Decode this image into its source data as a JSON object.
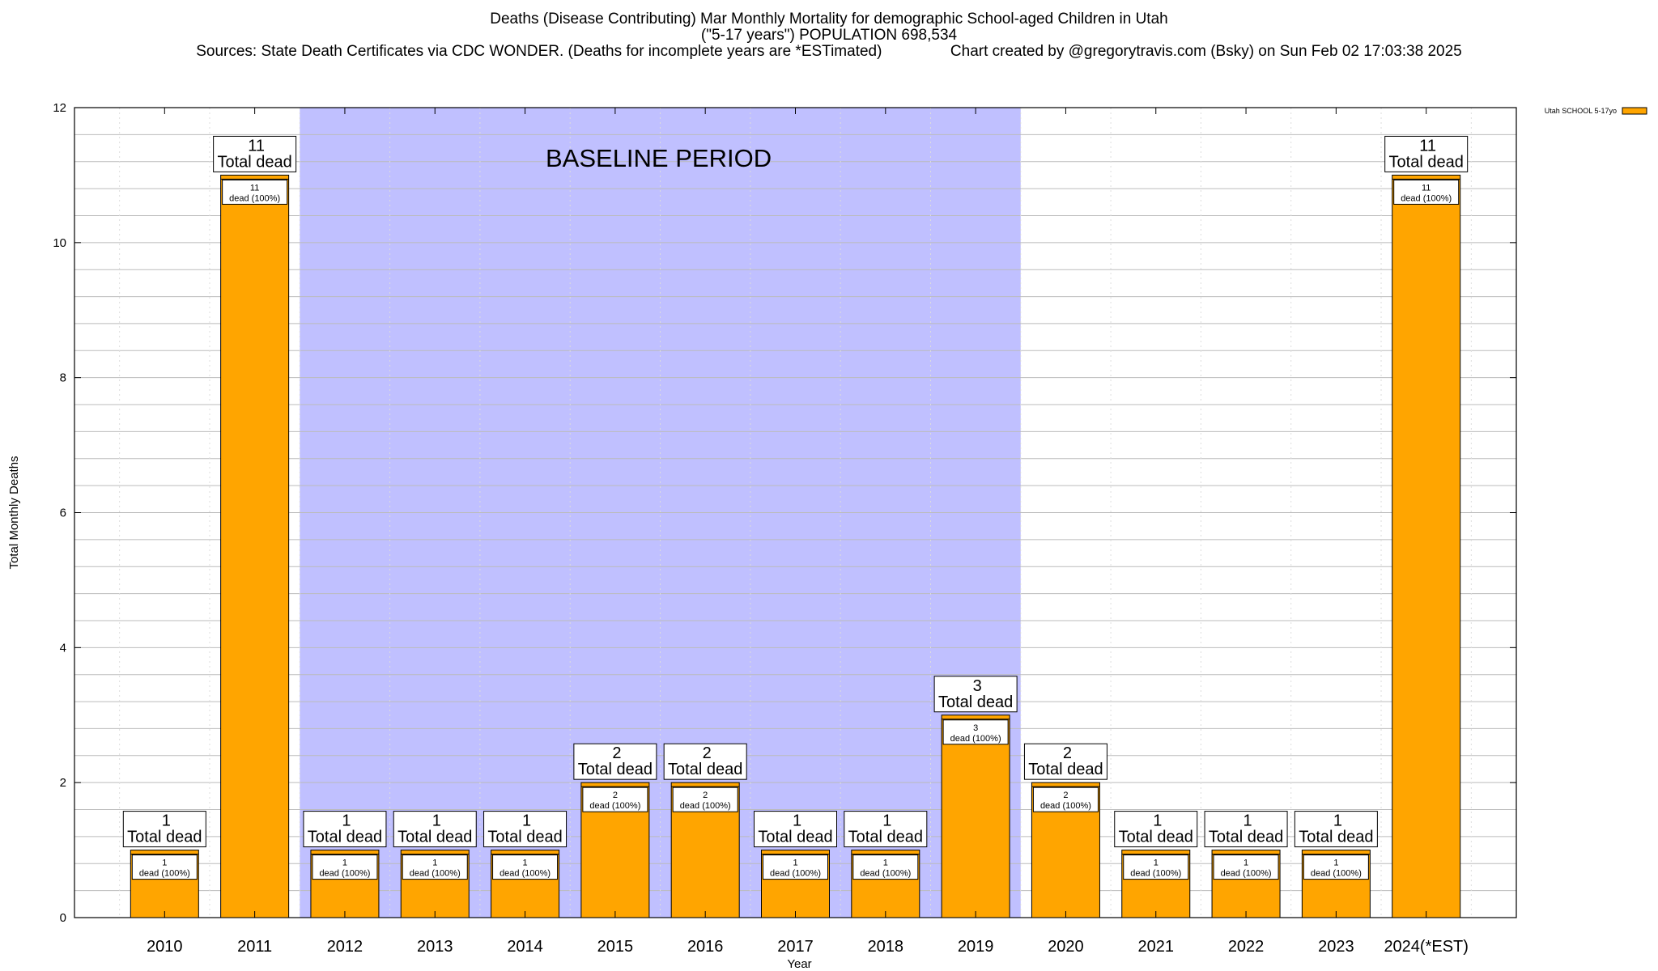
{
  "colors": {
    "bar": "#FFA500",
    "bar_stroke": "#000000",
    "baseline": "#C0C0FF",
    "grid": "#BBBBBB",
    "frame": "#000000"
  },
  "chart_data": {
    "type": "bar",
    "title": "Deaths (Disease Contributing) Mar Monthly Mortality for demographic School-aged Children in Utah",
    "subtitle": "(\"5-17 years\") POPULATION 698,534",
    "sources": "Sources: State Death Certificates via CDC WONDER. (Deaths for incomplete years are *ESTimated)",
    "credit": "Chart created by @gregorytravis.com (Bsky) on Sun Feb 02 17:03:38 2025",
    "xlabel": "Year",
    "ylabel": "Total Monthly Deaths",
    "ylim": [
      0,
      12
    ],
    "yticks": [
      0,
      2,
      4,
      6,
      8,
      10,
      12
    ],
    "grid": true,
    "legend_position": "top-right",
    "categories": [
      "2010",
      "2011",
      "2012",
      "2013",
      "2014",
      "2015",
      "2016",
      "2017",
      "2018",
      "2019",
      "2020",
      "2021",
      "2022",
      "2023",
      "2024(*EST)"
    ],
    "series": [
      {
        "name": "Utah SCHOOL 5-17yo",
        "values": [
          1,
          11,
          1,
          1,
          1,
          2,
          2,
          1,
          1,
          3,
          2,
          1,
          1,
          1,
          11
        ]
      }
    ],
    "total_label_suffix": "Total dead",
    "inner_label_suffix": "dead (100%)",
    "annotation": {
      "text": "BASELINE PERIOD",
      "span_categories": [
        "2012",
        "2019"
      ]
    }
  }
}
